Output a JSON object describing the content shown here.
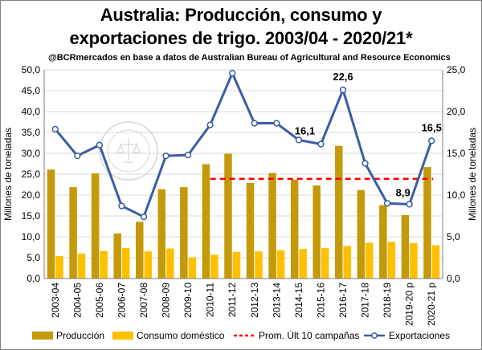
{
  "title_line1": "Australia: Producción, consumo y",
  "title_line2": "exportaciones de trigo. 2003/04 - 2020/21*",
  "subtitle": "@BCRmercados en base a datos de Australian Bureau of Agricultural and Resource Economics",
  "watermark_text": "BOLSA DE COMERCIO DE ROSARIO",
  "colors": {
    "produccion": "#c49a0a",
    "consumo": "#ffc000",
    "promedio": "#ff0000",
    "exportaciones": "#3b5ca6",
    "grid": "#d9d9d9",
    "axis": "#7f7f7f"
  },
  "chart_data": {
    "type": "bar+line",
    "title": "Australia: Producción, consumo y exportaciones de trigo. 2003/04 - 2020/21*",
    "categories": [
      "2003-04",
      "2004-05",
      "2005-06",
      "2006-07",
      "2007-08",
      "2008-09",
      "2009-10",
      "2010-11",
      "2011-12",
      "2012-13",
      "2013-14",
      "2014-15",
      "2015-16",
      "2016-17",
      "2017-18",
      "2018-19",
      "2019-20 p",
      "2020-21 p"
    ],
    "ylabel": "Millones de toneladas",
    "y2label": "Millones de toneladas",
    "ylim": [
      0,
      50
    ],
    "y2lim": [
      0,
      25
    ],
    "yticks": [
      "0,0",
      "5,0",
      "10,0",
      "15,0",
      "20,0",
      "25,0",
      "30,0",
      "35,0",
      "40,0",
      "45,0",
      "50,0"
    ],
    "y2ticks": [
      "0,0",
      "5,0",
      "10,0",
      "15,0",
      "20,0",
      "25,0"
    ],
    "series": [
      {
        "name": "Producción",
        "type": "bar",
        "axis": "left",
        "values": [
          26.1,
          21.9,
          25.2,
          10.8,
          13.6,
          21.4,
          21.9,
          27.4,
          29.9,
          22.9,
          25.3,
          23.7,
          22.3,
          31.8,
          21.2,
          17.6,
          15.2,
          26.7
        ]
      },
      {
        "name": "Consumo doméstico",
        "type": "bar",
        "axis": "left",
        "values": [
          5.4,
          6.0,
          6.6,
          7.3,
          6.5,
          7.2,
          5.1,
          5.7,
          6.4,
          6.5,
          6.8,
          7.1,
          7.3,
          7.8,
          8.6,
          8.8,
          8.5,
          8.0
        ]
      },
      {
        "name": "Prom. Últ 10 campañas",
        "type": "line",
        "axis": "left",
        "dashed": true,
        "start_index": 7,
        "value": 23.9
      },
      {
        "name": "Exportaciones",
        "type": "line",
        "axis": "right",
        "values": [
          17.9,
          14.7,
          16.0,
          8.7,
          7.4,
          14.7,
          14.8,
          18.4,
          24.6,
          18.6,
          18.6,
          16.6,
          16.1,
          22.6,
          13.8,
          9.0,
          8.9,
          16.5
        ]
      }
    ],
    "annotations": [
      {
        "series": "Exportaciones",
        "index": 12,
        "label": "16,1"
      },
      {
        "series": "Exportaciones",
        "index": 13,
        "label": "22,6"
      },
      {
        "series": "Exportaciones",
        "index": 16,
        "label": "8,9"
      },
      {
        "series": "Exportaciones",
        "index": 17,
        "label": "16,5"
      }
    ],
    "legend": {
      "position": "bottom",
      "items": [
        "Producción",
        "Consumo doméstico",
        "Prom. Últ 10 campañas",
        "Exportaciones"
      ]
    }
  }
}
